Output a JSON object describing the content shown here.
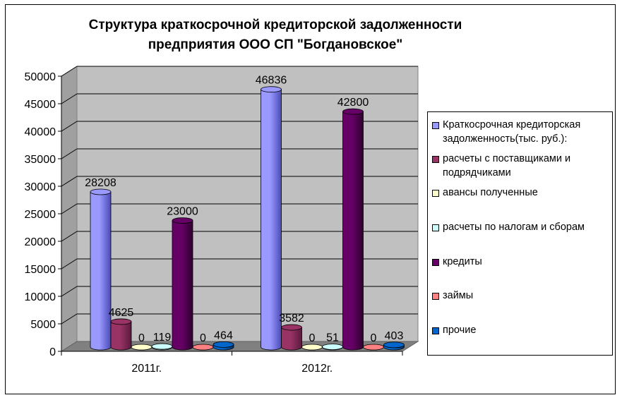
{
  "chart_data": {
    "type": "bar",
    "title_lines": [
      "Структура краткосрочной кредиторской задолженности",
      "предприятия ООО СП \"Богдановское\""
    ],
    "categories": [
      "2011г.",
      "2012г."
    ],
    "series": [
      {
        "name": "Краткосрочная кредиторская задолженность(тыс. руб.):",
        "values": [
          28208,
          46836
        ],
        "color": "#9999ff",
        "dark": "#4b4bb8",
        "labels": [
          "28208",
          "46836"
        ]
      },
      {
        "name": "расчеты с поставщиками и подрядчиками",
        "values": [
          4625,
          3582
        ],
        "color": "#993366",
        "dark": "#5a1a3c",
        "labels": [
          "4625",
          "3582"
        ]
      },
      {
        "name": "авансы полученные",
        "values": [
          0,
          0
        ],
        "color": "#ffffcc",
        "dark": "#b0b080",
        "labels": [
          "0",
          "0"
        ]
      },
      {
        "name": "расчеты по налогам и сборам",
        "values": [
          119,
          51
        ],
        "color": "#ccffff",
        "dark": "#80b0b0",
        "labels": [
          "119",
          "51"
        ]
      },
      {
        "name": "кредиты",
        "values": [
          23000,
          42800
        ],
        "color": "#660066",
        "dark": "#2e002e",
        "labels": [
          "23000",
          "42800"
        ]
      },
      {
        "name": "займы",
        "values": [
          0,
          0
        ],
        "color": "#ff8080",
        "dark": "#b04040",
        "labels": [
          "0",
          "0"
        ]
      },
      {
        "name": "прочие",
        "values": [
          464,
          403
        ],
        "color": "#0066cc",
        "dark": "#003366",
        "labels": [
          "464",
          "403"
        ]
      }
    ],
    "ylim": [
      0,
      50000
    ],
    "yticks": [
      "0",
      "5000",
      "10000",
      "15000",
      "20000",
      "25000",
      "30000",
      "35000",
      "40000",
      "45000",
      "50000"
    ],
    "grid": true,
    "legend_position": "right",
    "three_d": true
  }
}
